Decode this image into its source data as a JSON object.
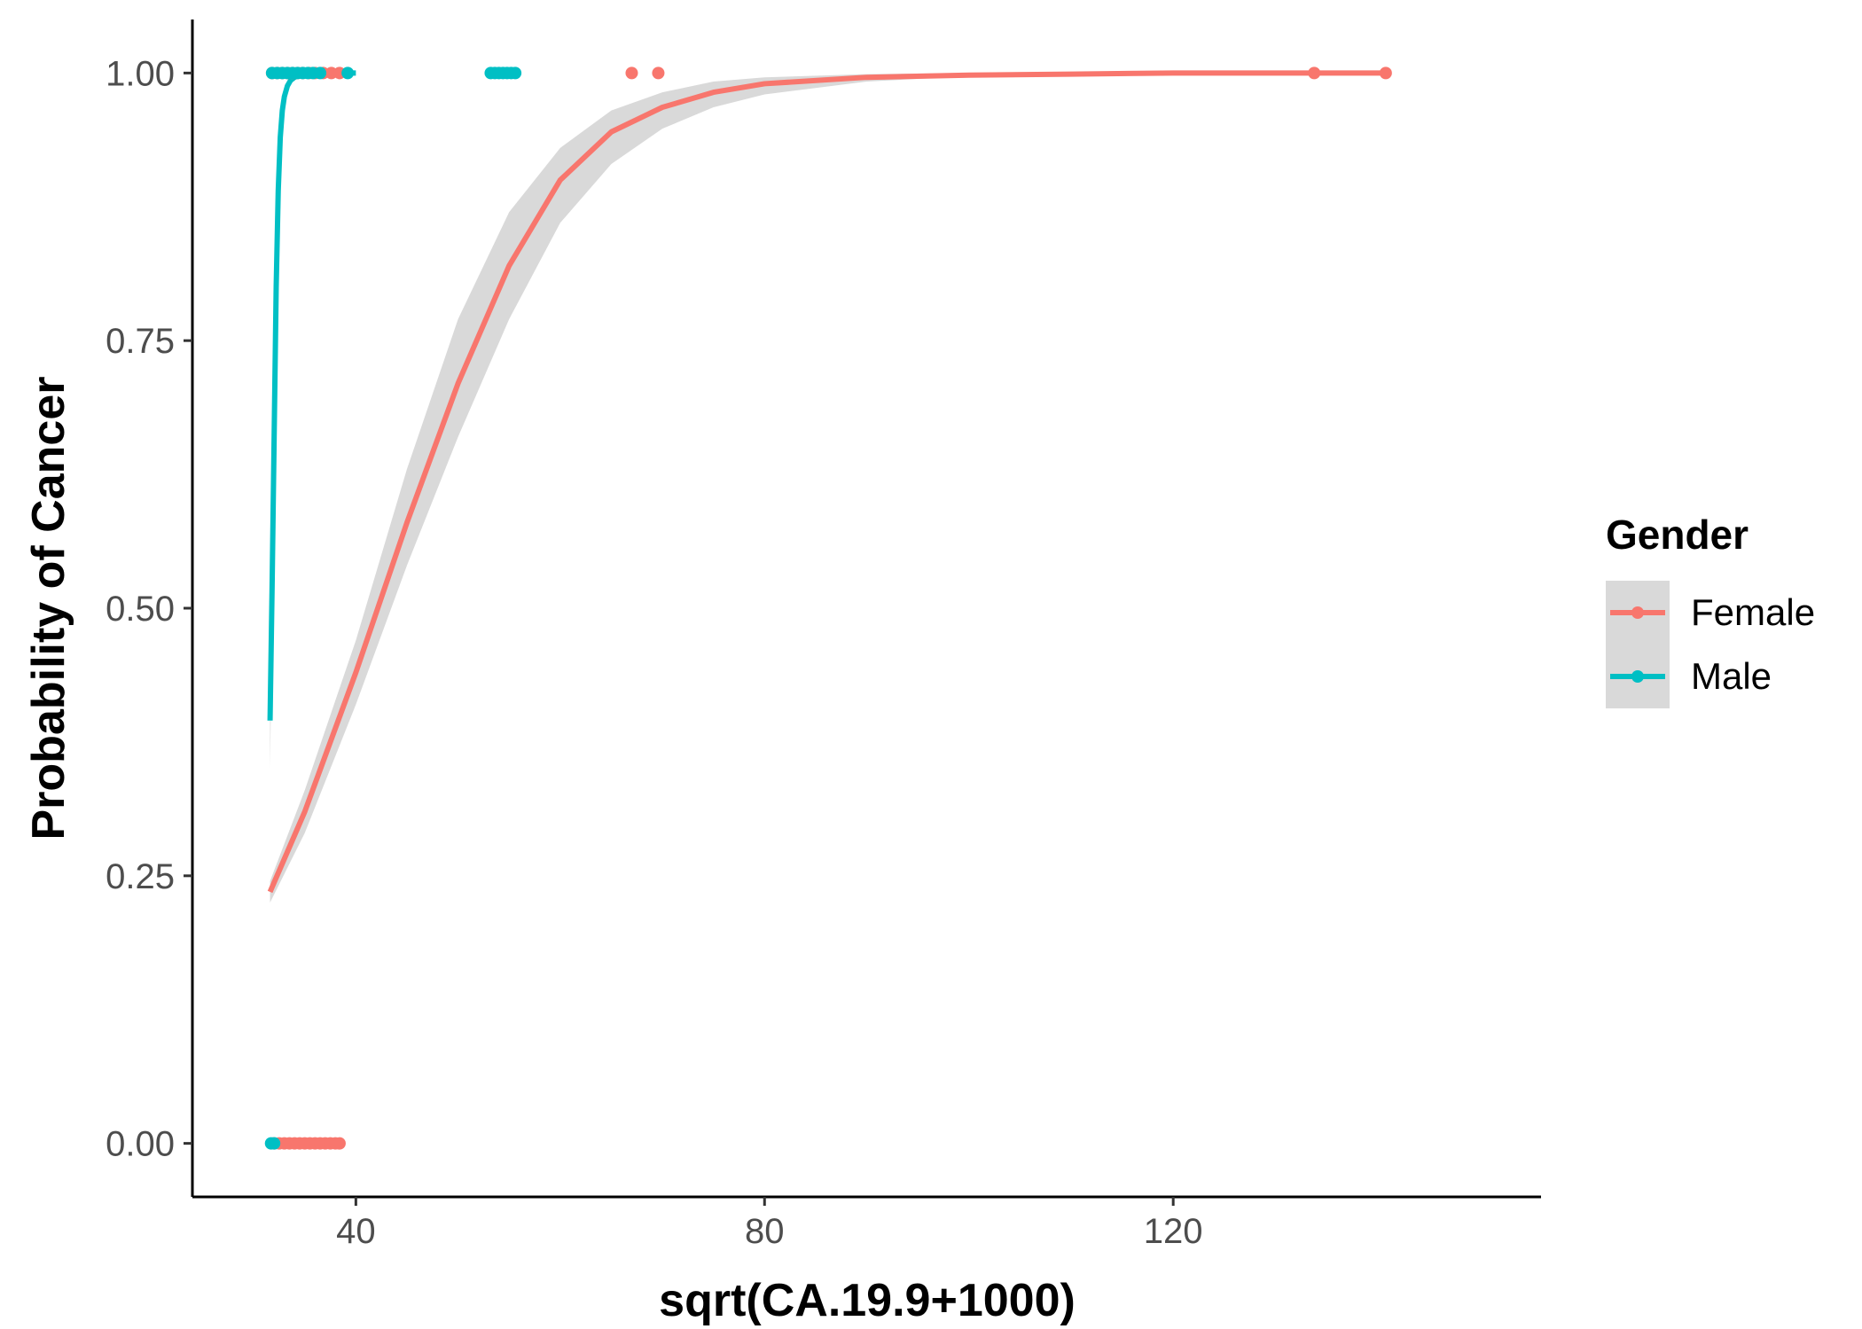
{
  "chart_data": {
    "type": "scatter",
    "xlabel": "sqrt(CA.19.9+1000)",
    "ylabel": "Probability of Cancer",
    "xlim": [
      24,
      156
    ],
    "ylim": [
      -0.05,
      1.05
    ],
    "x_ticks": [
      40,
      80,
      120
    ],
    "x_tick_labels": [
      "40",
      "80",
      "120"
    ],
    "y_ticks": [
      0,
      0.25,
      0.5,
      0.75,
      1.0
    ],
    "y_tick_labels": [
      "0.00",
      "0.25",
      "0.50",
      "0.75",
      "1.00"
    ],
    "grid": false,
    "legend": {
      "title": "Gender",
      "position": "right"
    },
    "series": [
      {
        "name": "Female",
        "color": "#F8766D",
        "points_y1": [
          31.8,
          32.3,
          32.8,
          33.3,
          33.8,
          34.3,
          34.8,
          35.4,
          36.0,
          36.8,
          37.6,
          38.4,
          67.0,
          69.6,
          133.8,
          140.8
        ],
        "points_y0": [
          32.0,
          32.5,
          33.0,
          33.5,
          34.0,
          34.5,
          35.0,
          35.5,
          36.0,
          36.5,
          37.0,
          37.5,
          38.0,
          38.4
        ],
        "fit_x": [
          31.6,
          35,
          40,
          45,
          50,
          55,
          60,
          65,
          70,
          75,
          80,
          90,
          100,
          110,
          120,
          130,
          140.8
        ],
        "fit_y": [
          0.235,
          0.31,
          0.44,
          0.58,
          0.71,
          0.82,
          0.9,
          0.945,
          0.968,
          0.982,
          0.99,
          0.996,
          0.998,
          0.999,
          1.0,
          1.0,
          1.0
        ],
        "ci_lower": [
          0.225,
          0.29,
          0.41,
          0.54,
          0.66,
          0.77,
          0.86,
          0.915,
          0.948,
          0.968,
          0.98,
          0.992,
          0.997,
          0.999,
          1.0,
          1.0,
          1.0
        ],
        "ci_upper": [
          0.245,
          0.33,
          0.47,
          0.63,
          0.77,
          0.87,
          0.93,
          0.965,
          0.982,
          0.992,
          0.996,
          0.999,
          1.0,
          1.0,
          1.0,
          1.0,
          1.0
        ]
      },
      {
        "name": "Male",
        "color": "#00BFC4",
        "points_y1": [
          31.8,
          32.3,
          32.8,
          33.3,
          33.8,
          34.3,
          34.8,
          35.3,
          35.8,
          36.5,
          39.2,
          53.2,
          53.6,
          54.0,
          54.4,
          54.8,
          55.2,
          55.6
        ],
        "points_y0": [
          31.7,
          32.0
        ],
        "fit_x": [
          31.6,
          31.8,
          32.0,
          32.2,
          32.4,
          32.6,
          32.8,
          33.0,
          33.3,
          33.6,
          34.0,
          34.5,
          35.0,
          36.0,
          38.0,
          40.0
        ],
        "fit_y": [
          0.395,
          0.52,
          0.66,
          0.8,
          0.89,
          0.94,
          0.965,
          0.978,
          0.988,
          0.993,
          0.996,
          0.998,
          0.999,
          1.0,
          1.0,
          1.0
        ],
        "ci_lower": [
          0.35,
          0.49,
          0.64,
          0.78,
          0.88,
          0.935,
          0.962,
          0.976,
          0.987,
          0.992,
          0.996,
          0.998,
          0.999,
          1.0,
          1.0,
          1.0
        ],
        "ci_upper": [
          0.44,
          0.55,
          0.68,
          0.82,
          0.9,
          0.945,
          0.968,
          0.98,
          0.989,
          0.994,
          0.997,
          0.999,
          1.0,
          1.0,
          1.0,
          1.0
        ]
      }
    ]
  },
  "colors": {
    "ribbon": "#d9d9d9",
    "axis": "#000000",
    "legend_key_bg": "#d9d9d9"
  }
}
